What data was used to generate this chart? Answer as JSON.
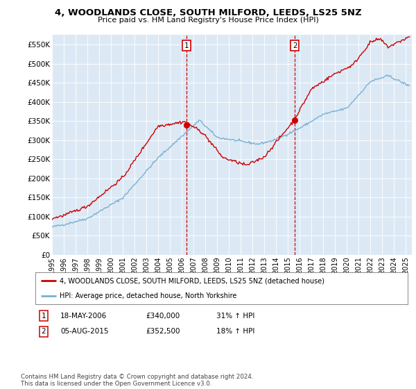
{
  "title": "4, WOODLANDS CLOSE, SOUTH MILFORD, LEEDS, LS25 5NZ",
  "subtitle": "Price paid vs. HM Land Registry's House Price Index (HPI)",
  "ylabel_ticks": [
    "£0",
    "£50K",
    "£100K",
    "£150K",
    "£200K",
    "£250K",
    "£300K",
    "£350K",
    "£400K",
    "£450K",
    "£500K",
    "£550K"
  ],
  "ytick_values": [
    0,
    50000,
    100000,
    150000,
    200000,
    250000,
    300000,
    350000,
    400000,
    450000,
    500000,
    550000
  ],
  "ylim": [
    0,
    575000
  ],
  "sale1_date": 2006.38,
  "sale1_price": 340000,
  "sale1_label": "1",
  "sale2_date": 2015.58,
  "sale2_price": 352500,
  "sale2_label": "2",
  "legend_line1": "4, WOODLANDS CLOSE, SOUTH MILFORD, LEEDS, LS25 5NZ (detached house)",
  "legend_line2": "HPI: Average price, detached house, North Yorkshire",
  "footnote": "Contains HM Land Registry data © Crown copyright and database right 2024.\nThis data is licensed under the Open Government Licence v3.0.",
  "line_red_color": "#cc0000",
  "line_blue_color": "#7ab0d4",
  "plot_bg_color": "#dce9f5",
  "vline_color": "#cc0000",
  "box_color": "#cc0000",
  "ann1_box": "1",
  "ann1_date": "18-MAY-2006",
  "ann1_price": "£340,000",
  "ann1_pct": "31% ↑ HPI",
  "ann2_box": "2",
  "ann2_date": "05-AUG-2015",
  "ann2_price": "£352,500",
  "ann2_pct": "18% ↑ HPI"
}
